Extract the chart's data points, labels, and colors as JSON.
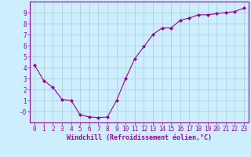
{
  "x": [
    0,
    1,
    2,
    3,
    4,
    5,
    6,
    7,
    8,
    9,
    10,
    11,
    12,
    13,
    14,
    15,
    16,
    17,
    18,
    19,
    20,
    21,
    22,
    23
  ],
  "y": [
    4.2,
    2.8,
    2.2,
    1.1,
    1.0,
    -0.3,
    -0.5,
    -0.55,
    -0.5,
    1.0,
    3.0,
    4.8,
    5.9,
    7.0,
    7.6,
    7.6,
    8.3,
    8.5,
    8.8,
    8.8,
    8.9,
    9.0,
    9.1,
    9.4
  ],
  "line_color": "#990099",
  "marker": "D",
  "marker_size": 2,
  "bg_color": "#cceeff",
  "grid_color": "#aacccc",
  "xlabel": "Windchill (Refroidissement éolien,°C)",
  "xlim": [
    -0.5,
    23.5
  ],
  "ylim": [
    -1.0,
    10.0
  ],
  "yticks": [
    0,
    1,
    2,
    3,
    4,
    5,
    6,
    7,
    8,
    9
  ],
  "ytick_labels": [
    "-0",
    "1",
    "2",
    "3",
    "4",
    "5",
    "6",
    "7",
    "8",
    "9"
  ],
  "xticks": [
    0,
    1,
    2,
    3,
    4,
    5,
    6,
    7,
    8,
    9,
    10,
    11,
    12,
    13,
    14,
    15,
    16,
    17,
    18,
    19,
    20,
    21,
    22,
    23
  ],
  "tick_color": "#990099",
  "label_color": "#990099",
  "font_size": 5.5,
  "xlabel_fontsize": 6.0,
  "linewidth": 0.8
}
